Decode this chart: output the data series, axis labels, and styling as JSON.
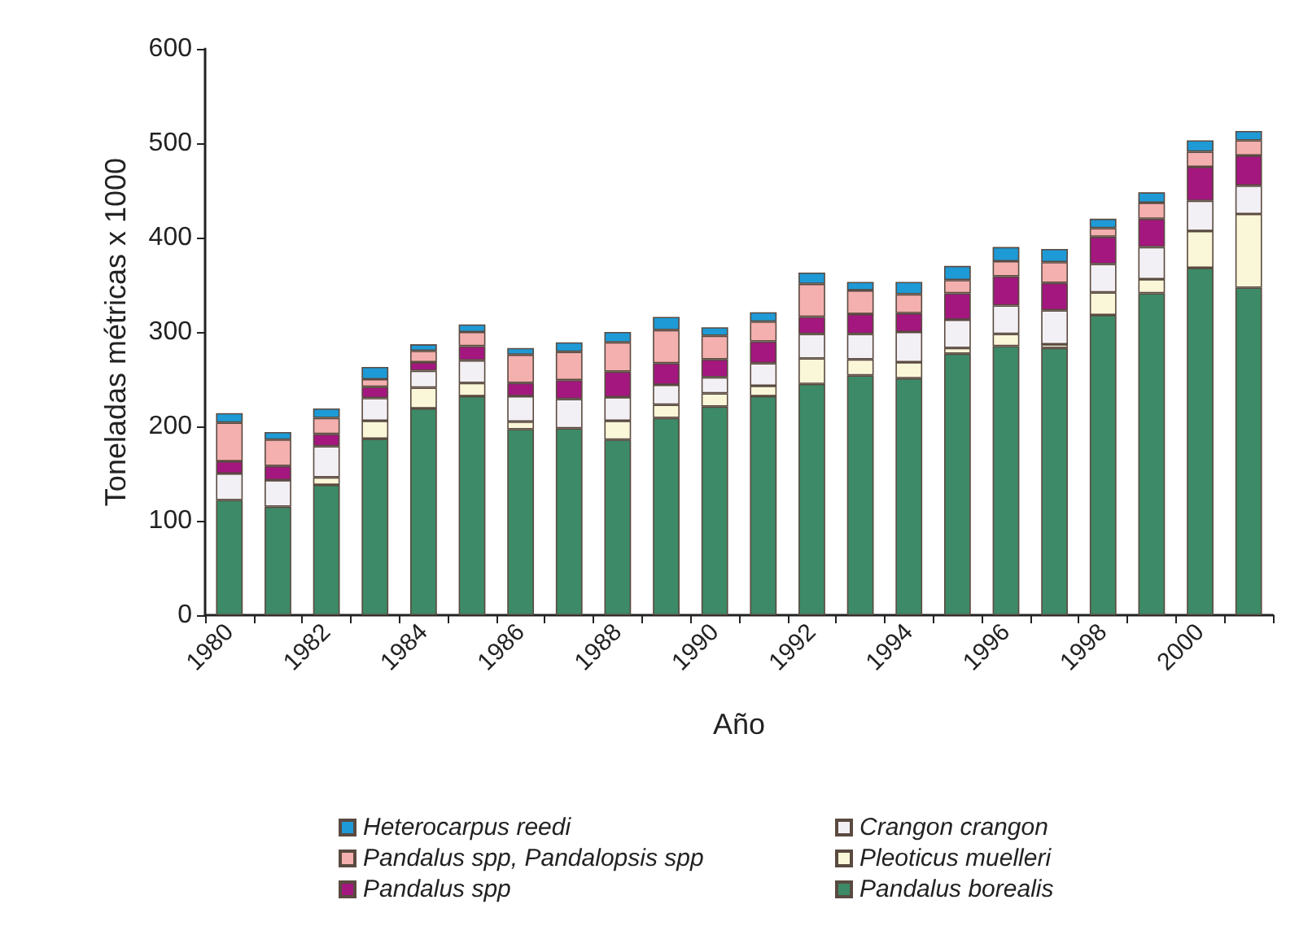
{
  "chart_data": {
    "type": "bar",
    "stacked": true,
    "xlabel": "Año",
    "ylabel": "Toneladas métricas x 1000",
    "categories": [
      "1980",
      null,
      "1982",
      null,
      "1984",
      null,
      "1986",
      null,
      "1988",
      null,
      "1990",
      null,
      "1992",
      null,
      "1994",
      null,
      "1996",
      null,
      "1998",
      null,
      "2000",
      null
    ],
    "ylim": [
      0,
      600
    ],
    "yticks": [
      0,
      100,
      200,
      300,
      400,
      500,
      600
    ],
    "grid": false,
    "legend": "bottom",
    "series": [
      {
        "name": "Pandalus borealis",
        "color": "#3d8a68",
        "values": [
          122,
          115,
          138,
          187,
          219,
          232,
          197,
          198,
          186,
          209,
          221,
          232,
          245,
          254,
          251,
          277,
          285,
          283,
          318,
          341,
          368,
          347
        ]
      },
      {
        "name": "Pleoticus muelleri",
        "color": "#faf6d8",
        "values": [
          null,
          null,
          8,
          19,
          22,
          14,
          8,
          null,
          20,
          14,
          14,
          11,
          27,
          17,
          17,
          6,
          13,
          4,
          24,
          15,
          39,
          78
        ]
      },
      {
        "name": "Crangon crangon",
        "color": "#f3f0f5",
        "values": [
          28,
          28,
          33,
          24,
          18,
          24,
          27,
          31,
          25,
          21,
          17,
          24,
          26,
          27,
          32,
          30,
          30,
          36,
          30,
          34,
          32,
          30
        ]
      },
      {
        "name": "Pandalus spp",
        "color": "#a3177f",
        "values": [
          13,
          15,
          13,
          12,
          9,
          15,
          14,
          20,
          27,
          23,
          19,
          23,
          18,
          21,
          20,
          28,
          31,
          29,
          29,
          30,
          36,
          32
        ]
      },
      {
        "name": "Pandalus spp, Pandalopsis spp",
        "color": "#f4b0ae",
        "values": [
          41,
          28,
          17,
          8,
          12,
          15,
          30,
          30,
          31,
          35,
          25,
          21,
          35,
          25,
          20,
          14,
          16,
          22,
          9,
          17,
          16,
          16
        ]
      },
      {
        "name": "Heterocarpus reedi",
        "color": "#1e9ad6",
        "values": [
          10,
          8,
          10,
          13,
          7,
          8,
          7,
          10,
          11,
          14,
          9,
          10,
          12,
          9,
          13,
          15,
          15,
          14,
          10,
          11,
          12,
          10
        ]
      }
    ]
  }
}
